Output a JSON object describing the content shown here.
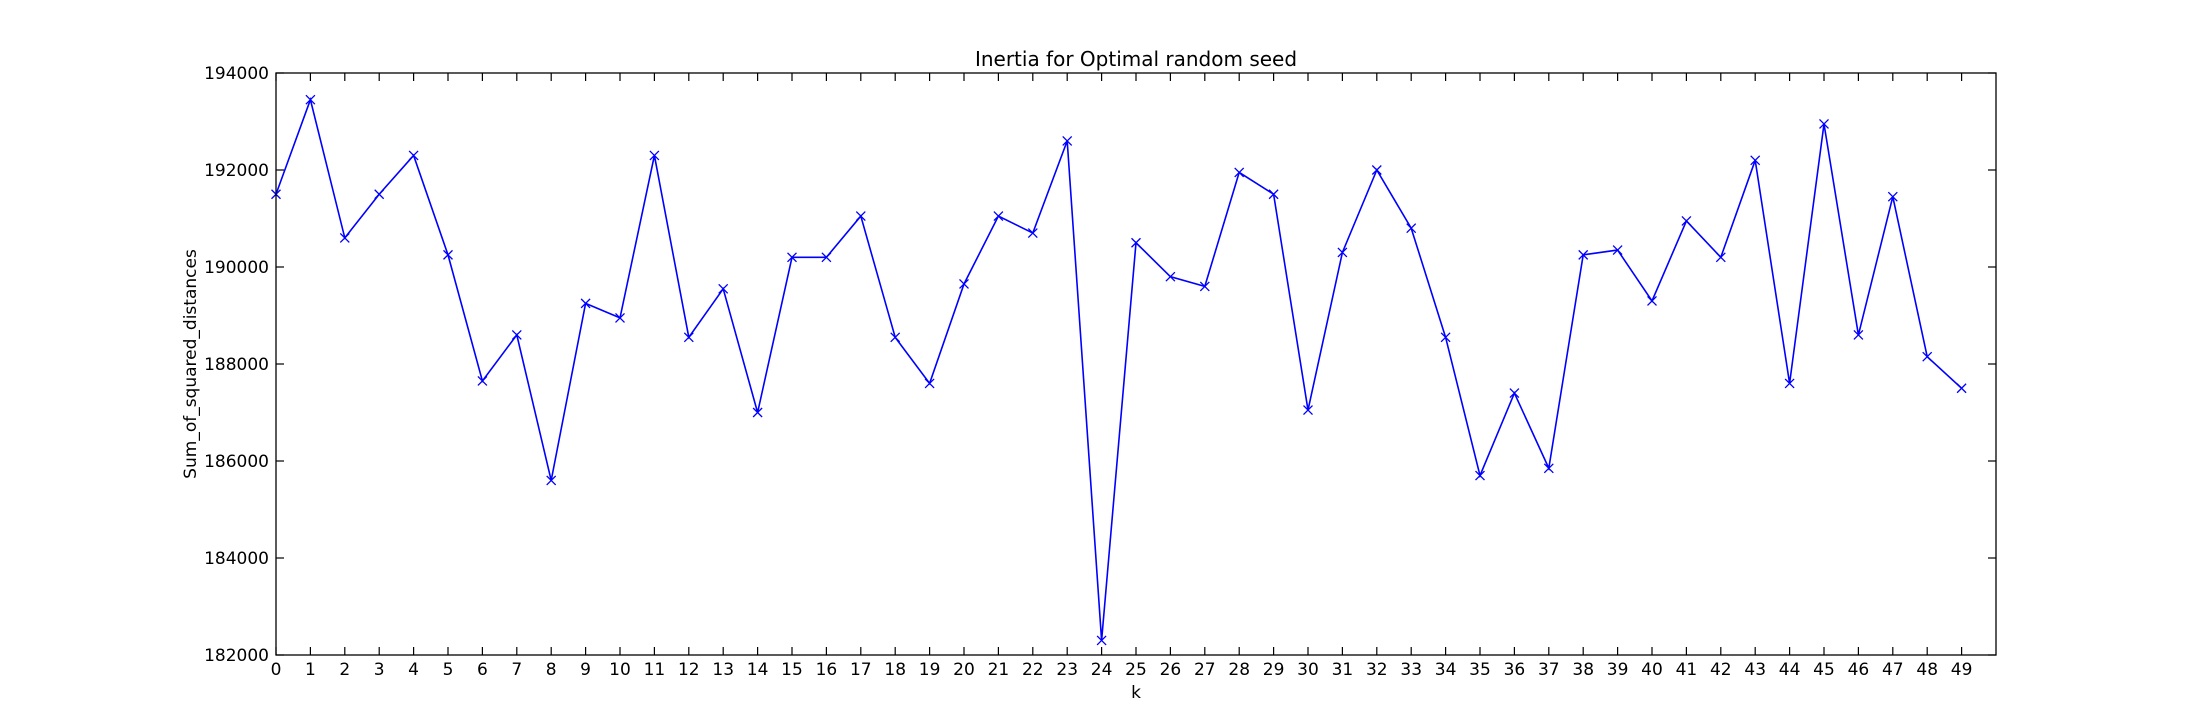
{
  "chart_data": {
    "type": "line",
    "title": "Inertia for Optimal random seed",
    "xlabel": "k",
    "ylabel": "Sum_of_squared_distances",
    "xlim": [
      0,
      50
    ],
    "ylim": [
      182000,
      194000
    ],
    "xticks": [
      0,
      1,
      2,
      3,
      4,
      5,
      6,
      7,
      8,
      9,
      10,
      11,
      12,
      13,
      14,
      15,
      16,
      17,
      18,
      19,
      20,
      21,
      22,
      23,
      24,
      25,
      26,
      27,
      28,
      29,
      30,
      31,
      32,
      33,
      34,
      35,
      36,
      37,
      38,
      39,
      40,
      41,
      42,
      43,
      44,
      45,
      46,
      47,
      48,
      49
    ],
    "yticks": [
      182000,
      184000,
      186000,
      188000,
      190000,
      192000,
      194000
    ],
    "grid": false,
    "line_color": "#0000ff",
    "marker": "x",
    "x": [
      0,
      1,
      2,
      3,
      4,
      5,
      6,
      7,
      8,
      9,
      10,
      11,
      12,
      13,
      14,
      15,
      16,
      17,
      18,
      19,
      20,
      21,
      22,
      23,
      24,
      25,
      26,
      27,
      28,
      29,
      30,
      31,
      32,
      33,
      34,
      35,
      36,
      37,
      38,
      39,
      40,
      41,
      42,
      43,
      44,
      45,
      46,
      47,
      48,
      49
    ],
    "y": [
      191500,
      193450,
      190600,
      191500,
      192300,
      190250,
      187650,
      188600,
      185600,
      189250,
      188950,
      192300,
      188550,
      189550,
      187000,
      190200,
      190200,
      191050,
      188550,
      187600,
      189650,
      191050,
      190700,
      192600,
      182300,
      190500,
      189800,
      189600,
      191950,
      191500,
      187050,
      190300,
      192000,
      190800,
      188550,
      185700,
      187400,
      185850,
      190250,
      190350,
      189300,
      190950,
      190200,
      192200,
      187600,
      192950,
      188600,
      191450,
      188150,
      187500
    ]
  }
}
